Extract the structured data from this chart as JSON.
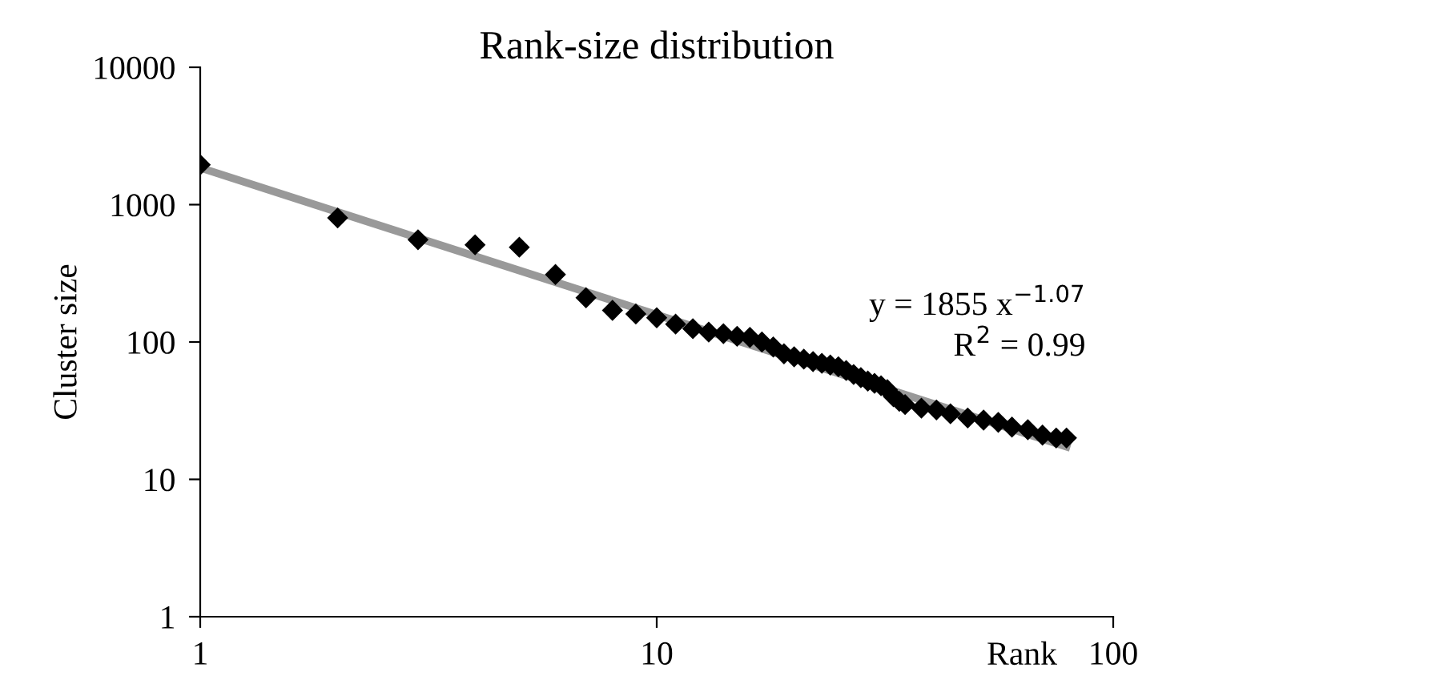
{
  "chart_data": {
    "type": "scatter",
    "title": "Rank-size distribution",
    "xlabel": "Rank",
    "ylabel": "Cluster size",
    "log": "xy",
    "xlim": [
      1,
      100
    ],
    "ylim": [
      1,
      10000
    ],
    "xticks": [
      1,
      10,
      100
    ],
    "yticks": [
      1,
      10,
      100,
      1000,
      10000
    ],
    "grid": false,
    "legend": false,
    "annotations": [
      "y = 1855 x$^{−1.07}$",
      "R$^{2}$ = 0.99"
    ],
    "series": [
      {
        "color": "#000000",
        "marker": "diamond",
        "x": [
          1,
          2,
          3,
          4,
          5,
          6,
          7,
          8,
          9,
          10,
          11,
          12,
          13,
          14,
          15,
          16,
          17,
          18,
          19,
          20,
          21,
          22,
          23,
          24,
          25,
          26,
          27,
          28,
          29,
          30,
          31,
          32,
          33,
          34,
          35,
          38,
          41,
          44,
          48,
          52,
          56,
          60,
          65,
          70,
          75,
          79
        ],
        "values": [
          1950,
          800,
          555,
          510,
          490,
          310,
          210,
          170,
          160,
          150,
          135,
          125,
          118,
          115,
          110,
          108,
          100,
          92,
          82,
          78,
          75,
          72,
          70,
          68,
          66,
          62,
          58,
          55,
          52,
          50,
          48,
          45,
          40,
          37,
          35,
          33,
          32,
          30,
          28,
          27,
          26,
          24,
          23,
          21,
          20,
          20
        ]
      },
      {
        "type": "line",
        "color": "#999999",
        "line_style": "solid",
        "x": [
          1,
          79
        ],
        "values": [
          1855,
          17.3
        ]
      }
    ]
  }
}
